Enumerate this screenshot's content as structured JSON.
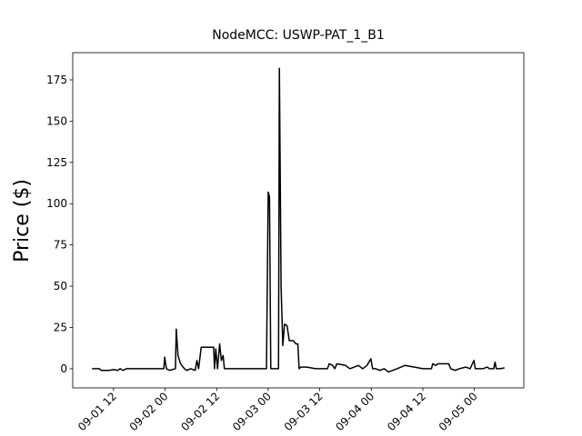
{
  "chart_data": {
    "type": "line",
    "title": "NodeMCC: USWP-PAT_1_B1",
    "y_label": "Price ($)",
    "x": [
      7.0,
      8.7,
      9.1,
      11.0,
      12.0,
      13.0,
      13.5,
      14.2,
      15.0,
      16.0,
      20.0,
      23.7,
      23.9,
      24.3,
      25.0,
      26.4,
      26.6,
      27.0,
      27.6,
      28.5,
      29.0,
      30.0,
      31.0,
      31.4,
      31.8,
      32.4,
      35.3,
      35.5,
      35.8,
      36.2,
      36.7,
      37.1,
      37.5,
      37.8,
      47.6,
      48.0,
      48.3,
      48.6,
      50.4,
      50.6,
      51.0,
      51.4,
      51.8,
      52.4,
      52.9,
      53.8,
      54.5,
      54.9,
      55.2,
      55.6,
      57.0,
      59.0,
      61.8,
      62.2,
      63.0,
      63.5,
      64.0,
      66.0,
      67.0,
      69.0,
      70.0,
      71.0,
      71.9,
      72.3,
      73.0,
      74.0,
      75.0,
      76.0,
      78.0,
      79.8,
      82.0,
      84.0,
      86.0,
      86.3,
      87.0,
      87.5,
      90.0,
      90.5,
      91.5,
      92.5,
      94.0,
      95.0,
      95.9,
      96.2,
      98.0,
      99.0,
      99.5,
      100.5,
      100.8,
      101.1,
      102.0,
      103.0
    ],
    "series": [
      {
        "name": "Price",
        "color": "#000000",
        "values": [
          0,
          0,
          -1,
          -1,
          -0.5,
          -1,
          0,
          -1,
          0,
          0,
          0,
          0,
          7,
          0,
          -1,
          0,
          24,
          8,
          3,
          0,
          -1,
          0,
          -1,
          5,
          0,
          13,
          13,
          0,
          12,
          0,
          15,
          5,
          8,
          0,
          0,
          107,
          104,
          0,
          0,
          182,
          50,
          14,
          27,
          26,
          17,
          17,
          15,
          15,
          0,
          1,
          1,
          0,
          0,
          3,
          2,
          0,
          3,
          2,
          0,
          2,
          0,
          2,
          6,
          0,
          0,
          -1,
          0,
          -2,
          0,
          2,
          1,
          0,
          0,
          3,
          2,
          3,
          3,
          0,
          -1,
          0,
          1,
          0,
          5,
          0,
          0,
          1,
          0,
          0,
          4,
          0,
          0,
          0.5
        ]
      }
    ],
    "xlim": [
      2.5,
      107.5
    ],
    "xticks": [
      {
        "value": 12,
        "label": "09-01 12"
      },
      {
        "value": 24,
        "label": "09-02 00"
      },
      {
        "value": 36,
        "label": "09-02 12"
      },
      {
        "value": 48,
        "label": "09-03 00"
      },
      {
        "value": 60,
        "label": "09-03 12"
      },
      {
        "value": 72,
        "label": "09-04 00"
      },
      {
        "value": 84,
        "label": "09-04 12"
      },
      {
        "value": 96,
        "label": "09-05 00"
      }
    ],
    "ylim": [
      -11.6,
      191.5
    ],
    "yticks": [
      0,
      25,
      50,
      75,
      100,
      125,
      150,
      175
    ],
    "grid": false
  }
}
